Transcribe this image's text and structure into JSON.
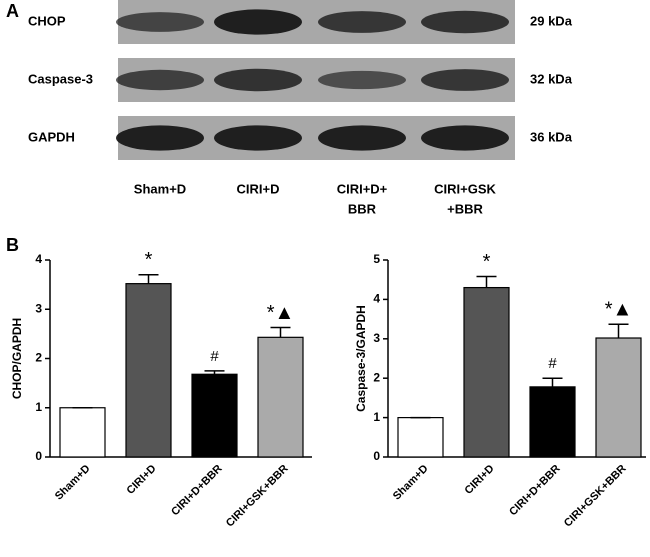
{
  "panel_a": {
    "label": "A",
    "rows": [
      {
        "name": "CHOP",
        "size": "29 kDa"
      },
      {
        "name": "Caspase-3",
        "size": "32 kDa"
      },
      {
        "name": "GAPDH",
        "size": "36 kDa"
      }
    ],
    "lanes": [
      [
        "Sham+D"
      ],
      [
        "CIRI+D"
      ],
      [
        "CIRI+D+",
        "BBR"
      ],
      [
        "CIRI+GSK",
        "+BBR"
      ]
    ]
  },
  "panel_b_label": "B",
  "chart_data": [
    {
      "type": "bar",
      "y_label": "CHOP/GAPDH",
      "categories": [
        "Sham+D",
        "CIRI+D",
        "CIRI+D+BBR",
        "CIRI+GSK+BBR"
      ],
      "values": [
        1,
        3.52,
        1.68,
        2.43
      ],
      "errors": [
        0,
        0.18,
        0.07,
        0.2
      ],
      "colors": [
        "#ffffff",
        "#555555",
        "#000000",
        "#aaaaaa"
      ],
      "annotations": [
        null,
        "*",
        "#",
        "*▲"
      ],
      "ylim": [
        0,
        4
      ],
      "yticks": [
        0,
        1,
        2,
        3,
        4
      ]
    },
    {
      "type": "bar",
      "y_label": "Caspase-3/GAPDH",
      "categories": [
        "Sham+D",
        "CIRI+D",
        "CIRI+D+BBR",
        "CIRI+GSK+BBR"
      ],
      "values": [
        1,
        4.3,
        1.78,
        3.02
      ],
      "errors": [
        0,
        0.28,
        0.22,
        0.35
      ],
      "colors": [
        "#ffffff",
        "#555555",
        "#000000",
        "#aaaaaa"
      ],
      "annotations": [
        null,
        "*",
        "#",
        "*▲"
      ],
      "ylim": [
        0,
        5
      ],
      "yticks": [
        0,
        1,
        2,
        3,
        4,
        5
      ]
    }
  ]
}
